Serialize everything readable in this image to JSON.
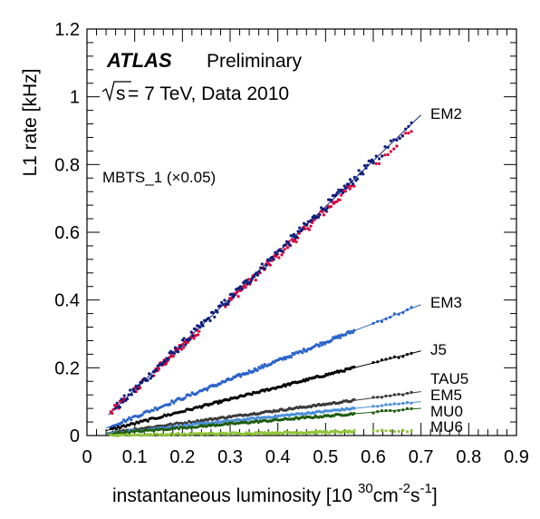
{
  "chart_data": {
    "type": "scatter",
    "title": "ATLAS",
    "subtitle": "Preliminary",
    "energy_label_prefix": "s",
    "energy_label_text": "= 7 TeV, Data 2010",
    "xlabel_main": "instantaneous luminosity [10",
    "xlabel_exp1": "30",
    "xlabel_cm": "cm",
    "xlabel_exp2": "-2",
    "xlabel_s": "s",
    "xlabel_exp3": "-1",
    "xlabel_close": "]",
    "ylabel": "L1 rate [kHz]",
    "xlim": [
      0,
      0.9
    ],
    "ylim": [
      0,
      1.2
    ],
    "xticks": [
      0,
      0.1,
      0.2,
      0.3,
      0.4,
      0.5,
      0.6,
      0.7,
      0.8,
      0.9
    ],
    "yticks": [
      0,
      0.2,
      0.4,
      0.6,
      0.8,
      1,
      1.2
    ],
    "grid": false,
    "series": [
      {
        "name": "MBTS_1 (×0.05)",
        "color": "#d6003c",
        "label_color": "#d6003c",
        "slope": 1.33,
        "fit": false,
        "segments": [
          [
            0.05,
            0.08,
            12
          ],
          [
            0.1,
            0.12,
            8
          ],
          [
            0.14,
            0.235,
            45
          ],
          [
            0.29,
            0.56,
            90
          ],
          [
            0.6,
            0.68,
            14
          ]
        ]
      },
      {
        "name": "EM2",
        "color": "#0d1f7a",
        "label_color": "#0d1f7a",
        "slope": 1.352,
        "fit": true,
        "fit_range": [
          0.045,
          0.7
        ],
        "segments": [
          [
            0.06,
            0.24,
            60
          ],
          [
            0.24,
            0.6,
            120
          ],
          [
            0.6,
            0.68,
            14
          ]
        ]
      },
      {
        "name": "EM3",
        "color": "#2b63c9",
        "label_color": "#2b63c9",
        "slope": 0.552,
        "fit": true,
        "fit_range": [
          0.04,
          0.7
        ],
        "segments": [
          [
            0.05,
            0.24,
            50
          ],
          [
            0.24,
            0.56,
            110
          ],
          [
            0.6,
            0.68,
            10
          ]
        ]
      },
      {
        "name": "J5",
        "color": "#000000",
        "label_color": "#000000",
        "slope": 0.357,
        "fit": true,
        "fit_range": [
          0.04,
          0.7
        ],
        "segments": [
          [
            0.05,
            0.24,
            50
          ],
          [
            0.24,
            0.56,
            110
          ],
          [
            0.6,
            0.68,
            10
          ]
        ]
      },
      {
        "name": "TAU5",
        "color": "#3a3a3a",
        "label_color": "#3a3a3a",
        "slope": 0.185,
        "fit": true,
        "fit_range": [
          0.04,
          0.7
        ],
        "segments": [
          [
            0.05,
            0.24,
            45
          ],
          [
            0.24,
            0.56,
            100
          ],
          [
            0.6,
            0.68,
            10
          ]
        ]
      },
      {
        "name": "EM5",
        "color": "#4a8fd8",
        "label_color": "#4a8fd8",
        "slope": 0.143,
        "fit": true,
        "fit_range": [
          0.04,
          0.7
        ],
        "segments": [
          [
            0.05,
            0.24,
            45
          ],
          [
            0.24,
            0.56,
            100
          ],
          [
            0.6,
            0.68,
            10
          ]
        ]
      },
      {
        "name": "MU0",
        "color": "#1f5c0f",
        "label_color": "#1f5c0f",
        "slope": 0.115,
        "fit": true,
        "fit_range": [
          0.04,
          0.7
        ],
        "segments": [
          [
            0.05,
            0.24,
            45
          ],
          [
            0.24,
            0.56,
            100
          ],
          [
            0.6,
            0.68,
            10
          ]
        ]
      },
      {
        "name": "MU6",
        "color": "#8fc437",
        "label_color": "#8fc437",
        "slope": 0.02,
        "fit": false,
        "segments": [
          [
            0.05,
            0.24,
            40
          ],
          [
            0.24,
            0.56,
            100
          ],
          [
            0.6,
            0.68,
            10
          ]
        ]
      }
    ]
  }
}
